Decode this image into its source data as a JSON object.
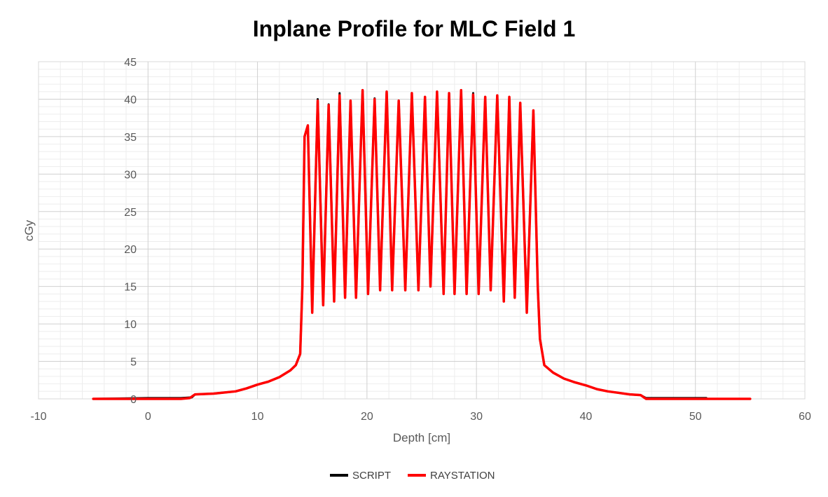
{
  "chart_data": {
    "type": "line",
    "title": "Inplane Profile for MLC Field 1",
    "xlabel": "Depth [cm]",
    "ylabel": "cGy",
    "xlim": [
      -10,
      60
    ],
    "ylim": [
      0,
      45
    ],
    "xticks": [
      -10,
      0,
      10,
      20,
      30,
      40,
      50,
      60
    ],
    "yticks": [
      0,
      5,
      10,
      15,
      20,
      25,
      30,
      35,
      40,
      45
    ],
    "grid": true,
    "legend_position": "bottom",
    "series": [
      {
        "name": "SCRIPT",
        "color": "#000000",
        "points": [
          [
            -5,
            0
          ],
          [
            0,
            0.1
          ],
          [
            3,
            0.1
          ],
          [
            4,
            0.2
          ],
          [
            4.3,
            0.6
          ],
          [
            6,
            0.7
          ],
          [
            8,
            1.0
          ],
          [
            9,
            1.4
          ],
          [
            10,
            1.9
          ],
          [
            11,
            2.3
          ],
          [
            12,
            2.9
          ],
          [
            13,
            3.8
          ],
          [
            13.5,
            4.5
          ],
          [
            13.9,
            6
          ],
          [
            14.1,
            15
          ],
          [
            14.3,
            35
          ],
          [
            14.6,
            36.5
          ],
          [
            15.0,
            12
          ],
          [
            15.5,
            40
          ],
          [
            16.0,
            13
          ],
          [
            16.5,
            39.3
          ],
          [
            17.0,
            13.5
          ],
          [
            17.5,
            40.8
          ],
          [
            18.0,
            13.5
          ],
          [
            18.5,
            39.8
          ],
          [
            19.0,
            13.5
          ],
          [
            19.6,
            41.2
          ],
          [
            20.1,
            14
          ],
          [
            20.7,
            40.1
          ],
          [
            21.2,
            14.5
          ],
          [
            21.8,
            41
          ],
          [
            22.3,
            14.5
          ],
          [
            22.9,
            39.8
          ],
          [
            23.5,
            14.5
          ],
          [
            24.1,
            40.8
          ],
          [
            24.7,
            14.5
          ],
          [
            25.3,
            40.3
          ],
          [
            25.8,
            15
          ],
          [
            26.4,
            41
          ],
          [
            27.0,
            14
          ],
          [
            27.5,
            40.8
          ],
          [
            28.0,
            14
          ],
          [
            28.6,
            41.2
          ],
          [
            29.1,
            14
          ],
          [
            29.7,
            40.8
          ],
          [
            30.2,
            14
          ],
          [
            30.8,
            40.3
          ],
          [
            31.3,
            14.5
          ],
          [
            31.9,
            40.5
          ],
          [
            32.5,
            13
          ],
          [
            33.0,
            40.3
          ],
          [
            33.5,
            13.5
          ],
          [
            34.0,
            39.5
          ],
          [
            34.6,
            12
          ],
          [
            35.2,
            38.5
          ],
          [
            35.6,
            15
          ],
          [
            35.8,
            8
          ],
          [
            36.2,
            4.5
          ],
          [
            37,
            3.5
          ],
          [
            38,
            2.7
          ],
          [
            39,
            2.2
          ],
          [
            40,
            1.8
          ],
          [
            41,
            1.3
          ],
          [
            42,
            1.0
          ],
          [
            43,
            0.8
          ],
          [
            44,
            0.6
          ],
          [
            45,
            0.5
          ],
          [
            45.5,
            0.1
          ],
          [
            48,
            0.1
          ],
          [
            51,
            0.1
          ]
        ]
      },
      {
        "name": "RAYSTATION",
        "color": "#ff0000",
        "points": [
          [
            -5,
            0
          ],
          [
            0,
            0
          ],
          [
            3,
            0
          ],
          [
            3.8,
            0.1
          ],
          [
            4.3,
            0.6
          ],
          [
            6,
            0.7
          ],
          [
            8,
            1.0
          ],
          [
            9,
            1.4
          ],
          [
            10,
            1.9
          ],
          [
            11,
            2.3
          ],
          [
            12,
            2.9
          ],
          [
            13,
            3.8
          ],
          [
            13.5,
            4.5
          ],
          [
            13.9,
            6
          ],
          [
            14.1,
            15
          ],
          [
            14.3,
            35
          ],
          [
            14.6,
            36.5
          ],
          [
            15.0,
            11.5
          ],
          [
            15.5,
            39.8
          ],
          [
            16.0,
            12.5
          ],
          [
            16.5,
            39.2
          ],
          [
            17.0,
            13
          ],
          [
            17.5,
            40.5
          ],
          [
            18.0,
            13.5
          ],
          [
            18.5,
            39.8
          ],
          [
            19.0,
            13.5
          ],
          [
            19.6,
            41.2
          ],
          [
            20.1,
            14
          ],
          [
            20.7,
            40
          ],
          [
            21.2,
            14.5
          ],
          [
            21.8,
            41
          ],
          [
            22.3,
            14.5
          ],
          [
            22.9,
            39.8
          ],
          [
            23.5,
            14.5
          ],
          [
            24.1,
            40.8
          ],
          [
            24.7,
            14.5
          ],
          [
            25.3,
            40.3
          ],
          [
            25.8,
            15
          ],
          [
            26.4,
            41
          ],
          [
            27.0,
            14
          ],
          [
            27.5,
            40.8
          ],
          [
            28.0,
            14
          ],
          [
            28.6,
            41.2
          ],
          [
            29.1,
            14
          ],
          [
            29.7,
            40.6
          ],
          [
            30.2,
            14
          ],
          [
            30.8,
            40.3
          ],
          [
            31.3,
            14.5
          ],
          [
            31.9,
            40.5
          ],
          [
            32.5,
            13
          ],
          [
            33.0,
            40.3
          ],
          [
            33.5,
            13.5
          ],
          [
            34.0,
            39.5
          ],
          [
            34.6,
            11.5
          ],
          [
            35.2,
            38.5
          ],
          [
            35.6,
            15
          ],
          [
            35.8,
            8
          ],
          [
            36.2,
            4.5
          ],
          [
            37,
            3.5
          ],
          [
            38,
            2.7
          ],
          [
            39,
            2.2
          ],
          [
            40,
            1.8
          ],
          [
            41,
            1.3
          ],
          [
            42,
            1.0
          ],
          [
            43,
            0.8
          ],
          [
            44,
            0.6
          ],
          [
            45,
            0.5
          ],
          [
            45.5,
            0
          ],
          [
            48,
            0
          ],
          [
            51,
            0
          ],
          [
            55,
            0
          ]
        ]
      }
    ]
  }
}
